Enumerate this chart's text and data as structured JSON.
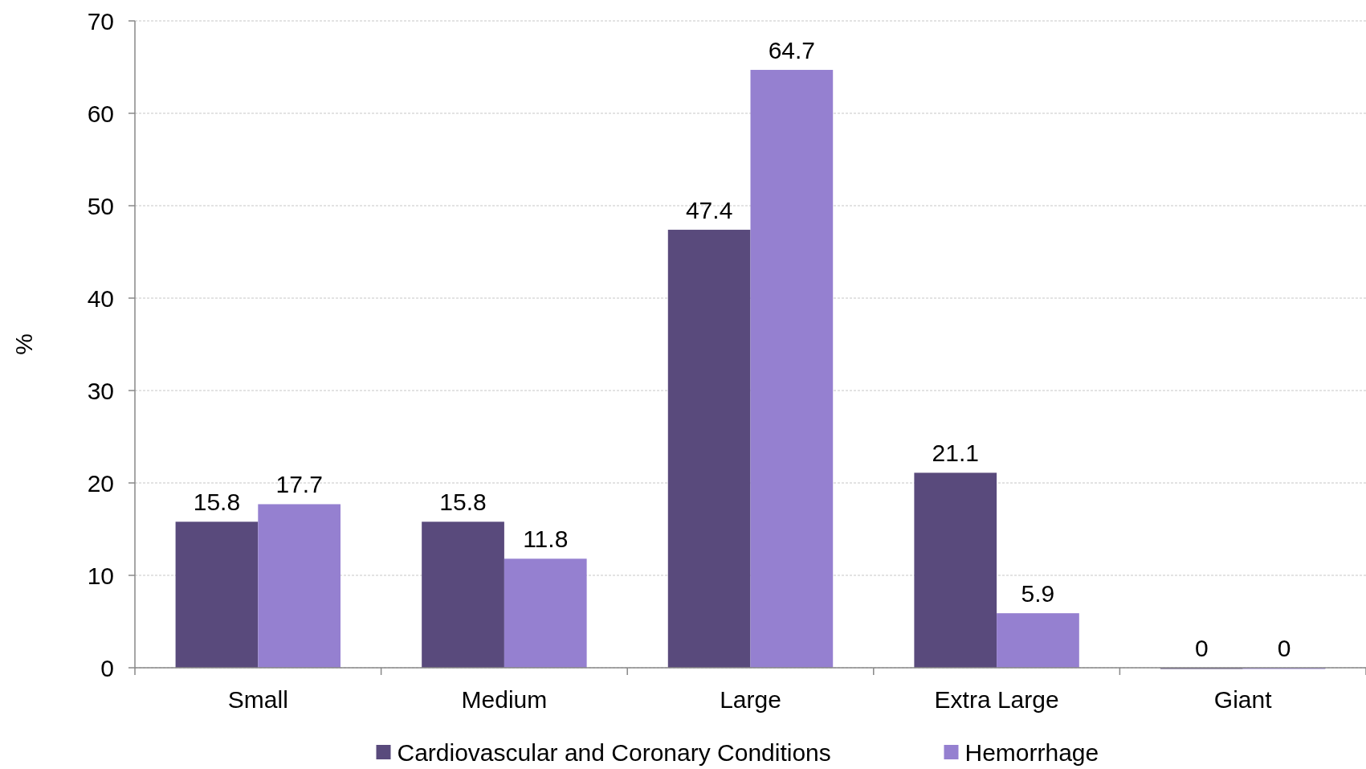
{
  "chart_data": {
    "type": "bar",
    "ylabel": "%",
    "categories": [
      "Small",
      "Medium",
      "Large",
      "Extra Large",
      "Giant"
    ],
    "series": [
      {
        "name": "Cardiovascular and Coronary Conditions",
        "color": "#594a7c",
        "values": [
          15.8,
          15.8,
          47.4,
          21.1,
          0
        ]
      },
      {
        "name": "Hemorrhage",
        "color": "#9580d0",
        "values": [
          17.7,
          11.8,
          64.7,
          5.9,
          0
        ]
      }
    ],
    "ylim": [
      0,
      70
    ],
    "yticks": [
      0,
      10,
      20,
      30,
      40,
      50,
      60,
      70
    ],
    "grid": "y",
    "legend": "bottom",
    "data_labels": true
  }
}
